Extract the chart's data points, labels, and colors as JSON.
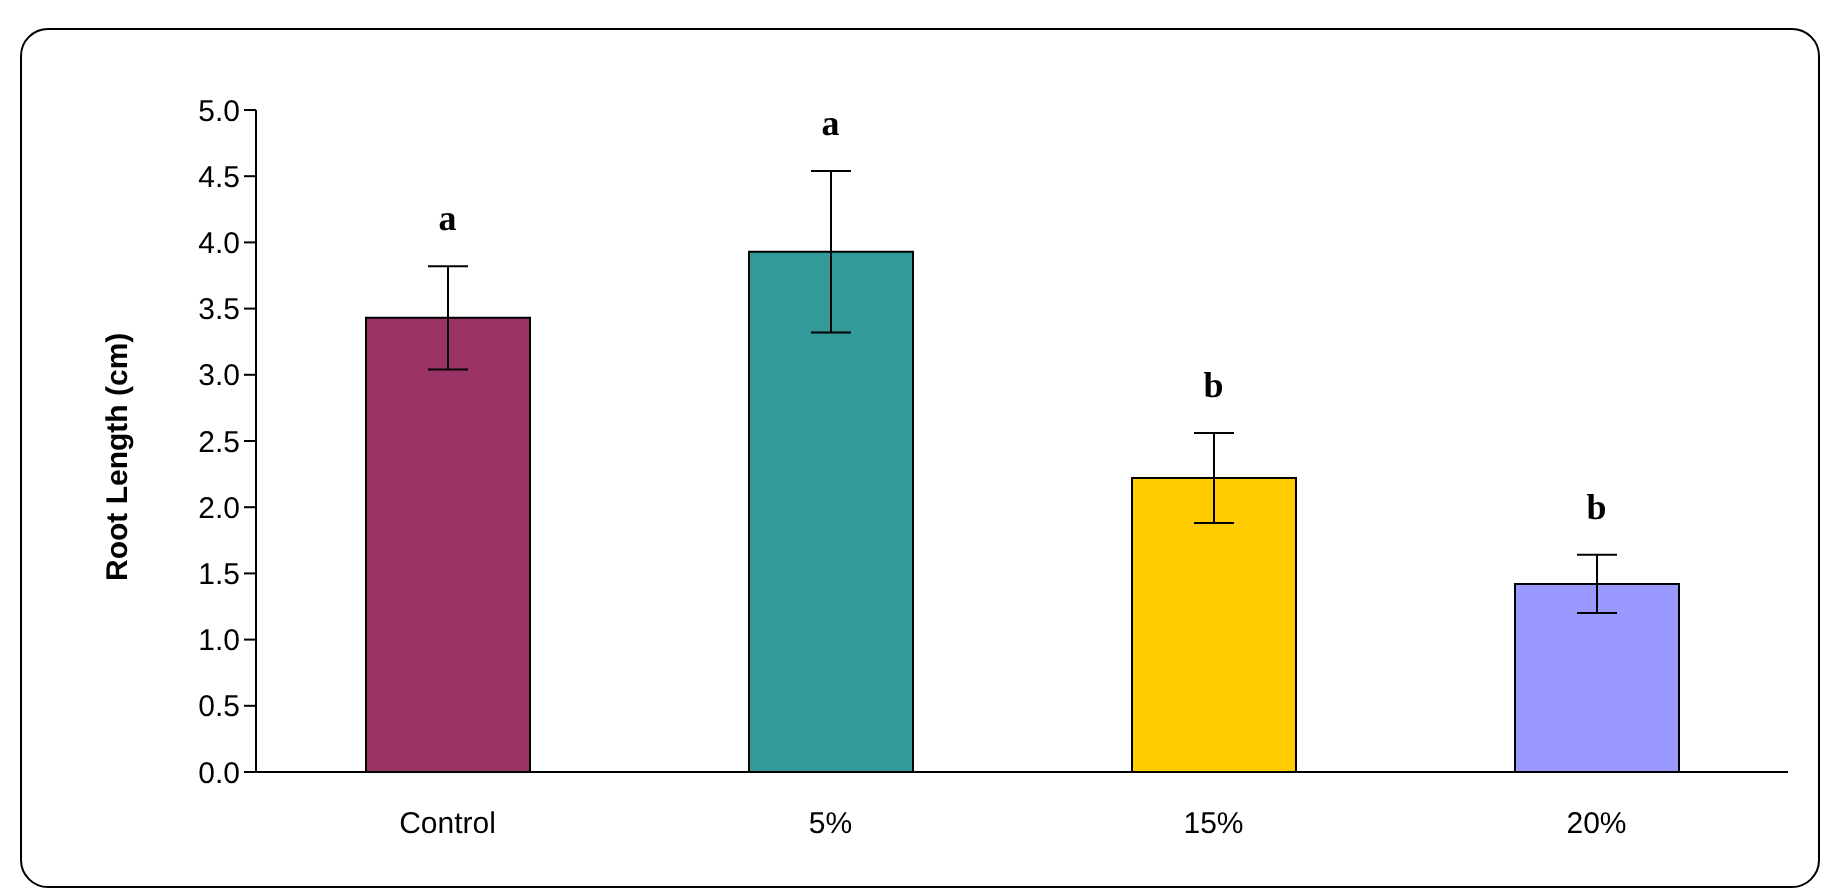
{
  "chart_data": {
    "type": "bar",
    "ylabel": "Root Length (cm)",
    "categories": [
      "Control",
      "5%",
      "15%",
      "20%"
    ],
    "values": [
      3.43,
      3.93,
      2.22,
      1.42
    ],
    "colors": [
      "#993366",
      "#339999",
      "#ffcc00",
      "#9999ff"
    ],
    "errors": [
      0.39,
      0.61,
      0.34,
      0.22
    ],
    "ylim": [
      0,
      5
    ],
    "yticks": [
      {
        "value": 0,
        "label": "0.0"
      },
      {
        "value": 0.5,
        "label": "0.5"
      },
      {
        "value": 1,
        "label": "1.0"
      },
      {
        "value": 1.5,
        "label": "1.5"
      },
      {
        "value": 2,
        "label": "2.0"
      },
      {
        "value": 2.5,
        "label": "2.5"
      },
      {
        "value": 3,
        "label": "3.0"
      },
      {
        "value": 3.5,
        "label": "3.5"
      },
      {
        "value": 4,
        "label": "4.0"
      },
      {
        "value": 4.5,
        "label": "4.5"
      },
      {
        "value": 5,
        "label": "5.0"
      }
    ],
    "annotations": [
      "a",
      "a",
      "b",
      "b"
    ],
    "grid": false
  }
}
